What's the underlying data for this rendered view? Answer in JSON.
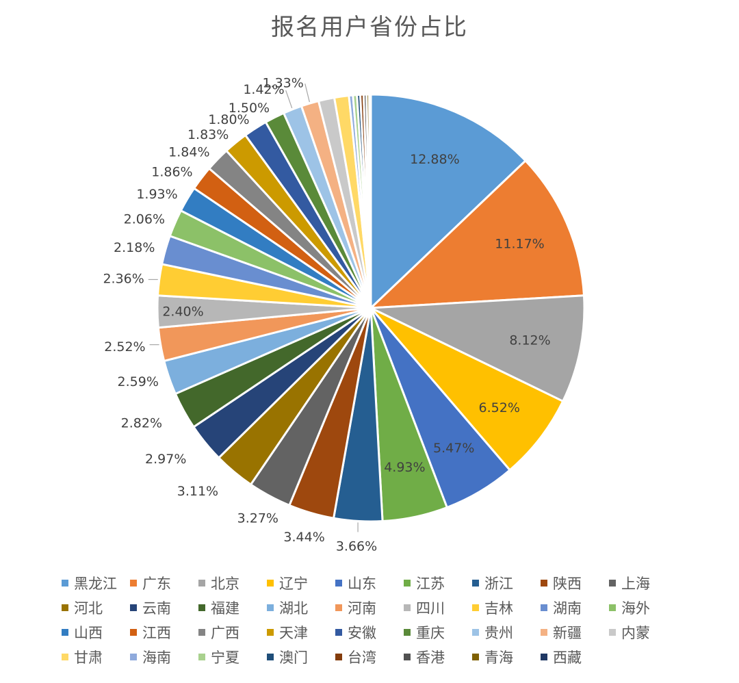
{
  "chart_data": {
    "type": "pie",
    "title": "报名用户省份占比",
    "slices": [
      {
        "name": "黑龙江",
        "value": 12.88,
        "label": "12.88%",
        "color": "#5B9BD5"
      },
      {
        "name": "广东",
        "value": 11.17,
        "label": "11.17%",
        "color": "#ED7D31"
      },
      {
        "name": "北京",
        "value": 8.12,
        "label": "8.12%",
        "color": "#A5A5A5"
      },
      {
        "name": "辽宁",
        "value": 6.52,
        "label": "6.52%",
        "color": "#FFC000"
      },
      {
        "name": "山东",
        "value": 5.47,
        "label": "5.47%",
        "color": "#4472C4"
      },
      {
        "name": "江苏",
        "value": 4.93,
        "label": "4.93%",
        "color": "#70AD47"
      },
      {
        "name": "浙江",
        "value": 3.66,
        "label": "3.66%",
        "color": "#255E91"
      },
      {
        "name": "陕西",
        "value": 3.44,
        "label": "3.44%",
        "color": "#9E480E"
      },
      {
        "name": "上海",
        "value": 3.27,
        "label": "3.27%",
        "color": "#636363"
      },
      {
        "name": "河北",
        "value": 3.11,
        "label": "3.11%",
        "color": "#997300"
      },
      {
        "name": "云南",
        "value": 2.97,
        "label": "2.97%",
        "color": "#264478"
      },
      {
        "name": "福建",
        "value": 2.82,
        "label": "2.82%",
        "color": "#43682B"
      },
      {
        "name": "湖北",
        "value": 2.59,
        "label": "2.59%",
        "color": "#7CAFDD"
      },
      {
        "name": "河南",
        "value": 2.52,
        "label": "2.52%",
        "color": "#F1975A"
      },
      {
        "name": "四川",
        "value": 2.4,
        "label": "2.40%",
        "color": "#B7B7B7"
      },
      {
        "name": "吉林",
        "value": 2.36,
        "label": "2.36%",
        "color": "#FFCD33"
      },
      {
        "name": "湖南",
        "value": 2.18,
        "label": "2.18%",
        "color": "#698ED0"
      },
      {
        "name": "海外",
        "value": 2.06,
        "label": "2.06%",
        "color": "#8CC168"
      },
      {
        "name": "山西",
        "value": 1.93,
        "label": "1.93%",
        "color": "#327DC2"
      },
      {
        "name": "江西",
        "value": 1.86,
        "label": "1.86%",
        "color": "#D26012"
      },
      {
        "name": "广西",
        "value": 1.84,
        "label": "1.84%",
        "color": "#848484"
      },
      {
        "name": "天津",
        "value": 1.83,
        "label": "1.83%",
        "color": "#CC9A00"
      },
      {
        "name": "安徽",
        "value": 1.8,
        "label": "1.80%",
        "color": "#335AA1"
      },
      {
        "name": "重庆",
        "value": 1.5,
        "label": "1.50%",
        "color": "#5A8A39"
      },
      {
        "name": "贵州",
        "value": 1.42,
        "label": "1.42%",
        "color": "#9DC3E6"
      },
      {
        "name": "新疆",
        "value": 1.33,
        "label": "1.33%",
        "color": "#F4B183"
      },
      {
        "name": "内蒙",
        "value": 1.2,
        "label": "",
        "color": "#C9C9C9"
      },
      {
        "name": "甘肃",
        "value": 1.1,
        "label": "",
        "color": "#FFD966"
      },
      {
        "name": "海南",
        "value": 0.3,
        "label": "",
        "color": "#8FAADC"
      },
      {
        "name": "宁夏",
        "value": 0.3,
        "label": "",
        "color": "#A9D18E"
      },
      {
        "name": "澳门",
        "value": 0.25,
        "label": "",
        "color": "#1F4E79"
      },
      {
        "name": "台湾",
        "value": 0.25,
        "label": "",
        "color": "#843C0C"
      },
      {
        "name": "香港",
        "value": 0.22,
        "label": "",
        "color": "#525252"
      },
      {
        "name": "青海",
        "value": 0.2,
        "label": "",
        "color": "#7F6000"
      },
      {
        "name": "西藏",
        "value": 0.12,
        "label": "",
        "color": "#203864"
      }
    ],
    "legend_position": "bottom"
  }
}
